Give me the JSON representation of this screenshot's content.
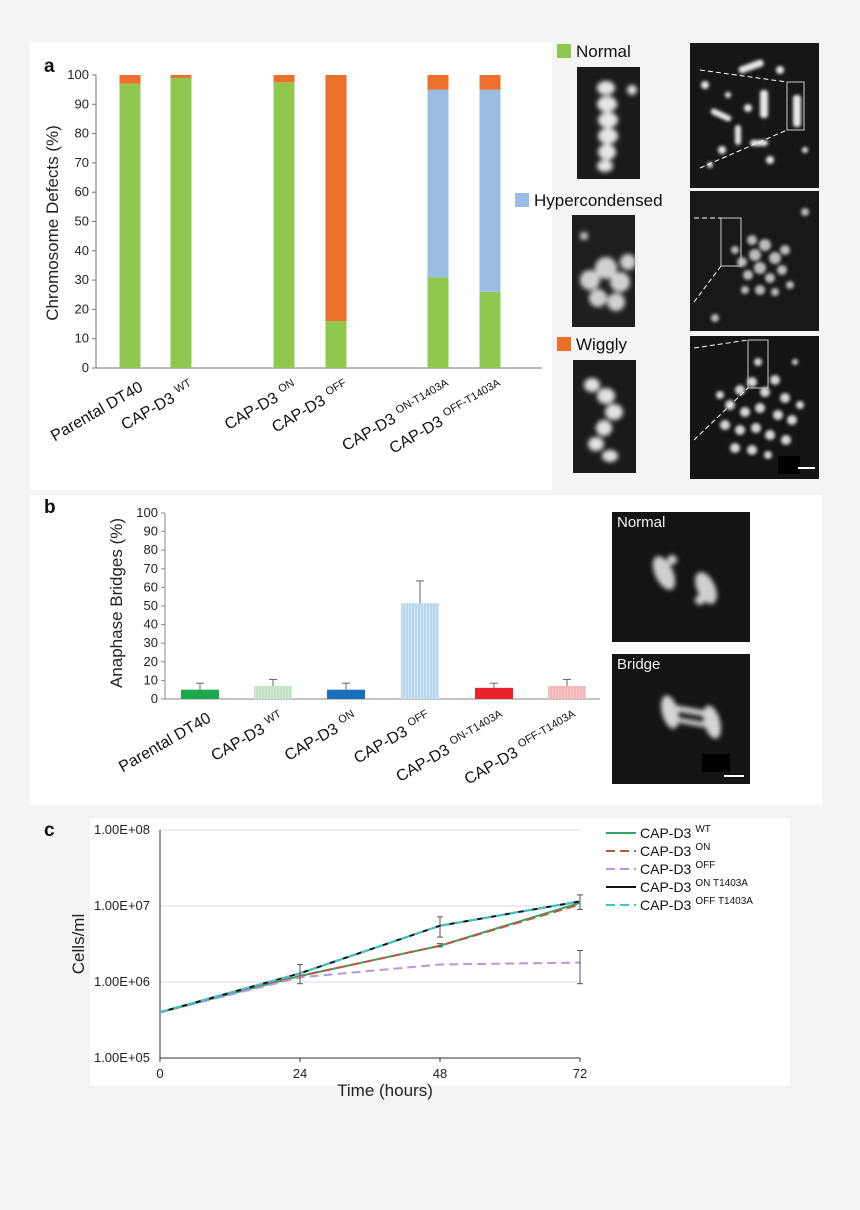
{
  "panels": {
    "a": "a",
    "b": "b",
    "c": "c"
  },
  "colors": {
    "normal": "#8fc74f",
    "hypercondensed": "#99bde3",
    "wiggly": "#ec7029",
    "series_wt": "#2ea86b",
    "series_on": "#c0563a",
    "series_off": "#b897db",
    "series_on_t1403a": "#111111",
    "series_off_t1403a": "#3cc6d0"
  },
  "panel_a": {
    "legend": [
      {
        "name": "Normal",
        "color_key": "normal"
      },
      {
        "name": "Hypercondensed",
        "color_key": "hypercondensed"
      },
      {
        "name": "Wiggly",
        "color_key": "wiggly"
      }
    ]
  },
  "panel_b": {
    "images": [
      {
        "label": "Normal"
      },
      {
        "label": "Bridge"
      }
    ]
  },
  "chart_data": [
    {
      "type": "bar",
      "stacked": true,
      "ylabel": "Chromosome Defects (%)",
      "ylim": [
        0,
        100
      ],
      "yticks": [
        0,
        10,
        20,
        30,
        40,
        50,
        60,
        70,
        80,
        90,
        100
      ],
      "categories": [
        {
          "base": "Parental DT40",
          "sup": ""
        },
        {
          "base": "CAP-D3",
          "sup": "WT"
        },
        {
          "base": "CAP-D3",
          "sup": "ON"
        },
        {
          "base": "CAP-D3",
          "sup": "OFF"
        },
        {
          "base": "CAP-D3",
          "sup": "ON-T1403A"
        },
        {
          "base": "CAP-D3",
          "sup": "OFF-T1403A"
        }
      ],
      "series": [
        {
          "name": "Normal",
          "values": [
            97,
            99,
            97.5,
            16,
            31,
            26
          ]
        },
        {
          "name": "Hypercondensed",
          "values": [
            0,
            0,
            0,
            0,
            64,
            69
          ]
        },
        {
          "name": "Wiggly",
          "values": [
            3,
            1,
            2.5,
            84,
            5,
            5
          ]
        }
      ]
    },
    {
      "type": "bar",
      "ylabel": "Anaphase Bridges (%)",
      "ylim": [
        0,
        100
      ],
      "yticks": [
        0,
        10,
        20,
        30,
        40,
        50,
        60,
        70,
        80,
        90,
        100
      ],
      "categories": [
        {
          "base": "Parental DT40",
          "sup": ""
        },
        {
          "base": "CAP-D3",
          "sup": "WT"
        },
        {
          "base": "CAP-D3",
          "sup": "ON"
        },
        {
          "base": "CAP-D3",
          "sup": "OFF"
        },
        {
          "base": "CAP-D3",
          "sup": "ON-T1403A"
        },
        {
          "base": "CAP-D3",
          "sup": "OFF-T1403A"
        }
      ],
      "values": [
        5,
        7,
        5,
        51.5,
        6,
        7
      ],
      "errors": [
        3.5,
        3.5,
        3.5,
        12,
        2.5,
        3.5
      ],
      "bar_colors": [
        "#1ba84a",
        "#bfe0c4",
        "#1a6fb9",
        "#b8d7ef",
        "#e8232b",
        "#f5b3b6"
      ]
    },
    {
      "type": "line",
      "xlabel": "Time (hours)",
      "ylabel": "Cells/ml",
      "log_y": true,
      "ylim": [
        100000,
        100000000
      ],
      "yticks": [
        "1.00E+05",
        "1.00E+06",
        "1.00E+07",
        "1.00E+08"
      ],
      "x": [
        0,
        24,
        48,
        72
      ],
      "xlim": [
        0,
        72
      ],
      "xticks": [
        "0",
        "24",
        "48",
        "72"
      ],
      "series": [
        {
          "name_base": "CAP-D3",
          "name_sup": "WT",
          "color_key": "series_wt",
          "dash": false,
          "values": [
            400000,
            1200000,
            3000000,
            11000000
          ]
        },
        {
          "name_base": "CAP-D3",
          "name_sup": "ON",
          "color_key": "series_on",
          "dash": true,
          "values": [
            400000,
            1200000,
            3000000,
            10500000
          ]
        },
        {
          "name_base": "CAP-D3",
          "name_sup": "OFF",
          "color_key": "series_off",
          "dash": true,
          "values": [
            400000,
            1150000,
            1700000,
            1800000
          ]
        },
        {
          "name_base": "CAP-D3",
          "name_sup": "ON T1403A",
          "color_key": "series_on_t1403a",
          "dash": false,
          "values": [
            400000,
            1300000,
            5500000,
            11500000
          ]
        },
        {
          "name_base": "CAP-D3",
          "name_sup": "OFF T1403A",
          "color_key": "series_off_t1403a",
          "dash": true,
          "values": [
            400000,
            1300000,
            5500000,
            11500000
          ]
        }
      ],
      "error_bars": [
        {
          "x": 24,
          "y": 1200000,
          "lo": 950000,
          "hi": 1700000
        },
        {
          "x": 48,
          "y": 5500000,
          "lo": 3900000,
          "hi": 7200000
        },
        {
          "x": 48,
          "y": 3000000,
          "lo": 2900000,
          "hi": 3200000
        },
        {
          "x": 72,
          "y": 11000000,
          "lo": 9000000,
          "hi": 14000000
        },
        {
          "x": 72,
          "y": 1800000,
          "lo": 950000,
          "hi": 2600000
        }
      ]
    }
  ]
}
